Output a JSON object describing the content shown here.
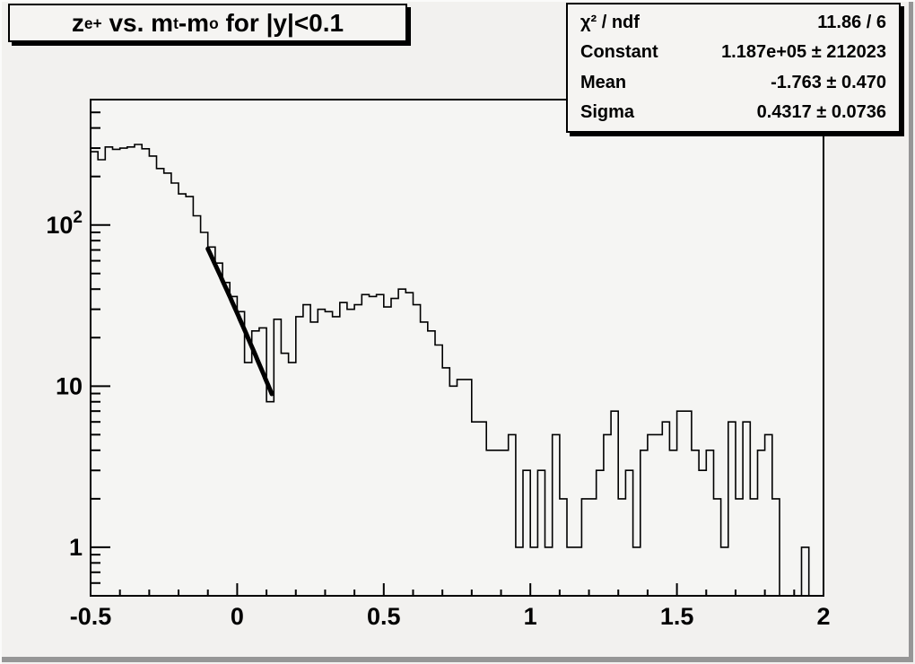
{
  "window": {
    "app": "ROOT canvas"
  },
  "title": {
    "segments": [
      {
        "text": "z"
      },
      {
        "sub": "e+"
      },
      {
        "text": " vs. m"
      },
      {
        "sub": "t"
      },
      {
        "text": "-m"
      },
      {
        "sub": "o"
      },
      {
        "text": " for |y|<0.1"
      }
    ]
  },
  "stats": {
    "rows": [
      {
        "label": "χ² / ndf",
        "value": "11.86 / 6"
      },
      {
        "label": "Constant",
        "value": "1.187e+05 ± 212023"
      },
      {
        "label": "Mean",
        "value": "-1.763 ± 0.470"
      },
      {
        "label": "Sigma",
        "value": "0.4317 ± 0.0736"
      }
    ]
  },
  "colors": {
    "canvas_bg": "#f2f1ef",
    "frame_fill": "#f5f5f3",
    "line": "#000000",
    "fit_line": "#000000",
    "border_dark": "#969696",
    "border_light": "#fbfbfa"
  },
  "chart_data": {
    "type": "bar",
    "style": "step-histogram",
    "title": "z_e+ vs. m_t-m_o for |y|<0.1",
    "xlabel": "",
    "ylabel": "",
    "x_min": -0.5,
    "x_max": 2.0,
    "n_bins": 100,
    "bin_width": 0.025,
    "y_scale": "log",
    "ylim": [
      0.5,
      600
    ],
    "grid": false,
    "legend": false,
    "values": [
      285,
      254,
      305,
      295,
      300,
      305,
      316,
      297,
      268,
      224,
      210,
      182,
      156,
      150,
      114,
      90,
      73,
      58,
      44,
      36,
      29,
      14,
      22,
      23,
      8,
      26,
      16,
      14,
      27,
      32,
      25,
      30,
      29,
      27,
      33,
      30,
      32,
      37,
      36,
      37,
      31,
      35,
      40,
      38,
      32,
      25,
      22,
      18,
      13,
      10,
      11,
      11,
      6,
      6,
      4,
      4,
      4,
      5,
      1,
      3,
      1,
      3,
      1,
      5,
      2,
      1,
      1,
      2,
      2,
      3,
      5,
      7,
      2,
      3,
      1,
      4,
      5,
      5,
      6,
      4,
      7,
      7,
      4,
      3,
      4,
      2,
      1,
      6,
      2,
      6,
      2,
      4,
      5,
      2,
      0,
      0,
      0,
      1,
      0,
      0
    ],
    "x_ticks": [
      {
        "v": -0.5,
        "label": "-0.5"
      },
      {
        "v": 0,
        "label": "0"
      },
      {
        "v": 0.5,
        "label": "0.5"
      },
      {
        "v": 1,
        "label": "1"
      },
      {
        "v": 1.5,
        "label": "1.5"
      },
      {
        "v": 2,
        "label": "2"
      }
    ],
    "x_minor_step": 0.1,
    "y_ticks": [
      {
        "v": 1,
        "base": "1",
        "exp": ""
      },
      {
        "v": 10,
        "base": "10",
        "exp": ""
      },
      {
        "v": 100,
        "base": "10",
        "exp": "2"
      }
    ],
    "fit": {
      "type": "gaussian",
      "constant": 118700,
      "mean": -1.763,
      "sigma": 0.4317,
      "chi2_ndf": "11.86 / 6",
      "range_x": [
        -0.1,
        0.118
      ]
    }
  }
}
